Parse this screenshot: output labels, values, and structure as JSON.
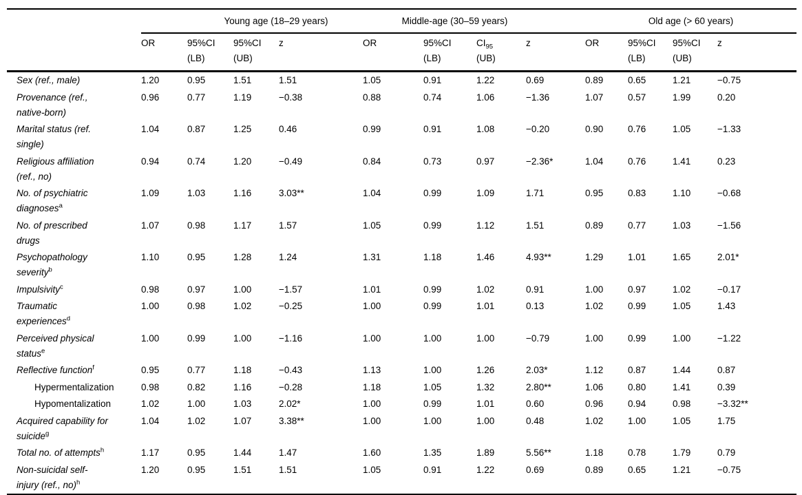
{
  "page": {
    "background": "#ffffff",
    "text_color": "#000000",
    "rule_color": "#000000"
  },
  "table": {
    "groups": [
      {
        "label": "Young age (18–29 years)"
      },
      {
        "label": "Middle-age (30–59 years)"
      },
      {
        "label": "Old age (> 60 years)"
      }
    ],
    "header_cells": [
      {
        "line1": "OR",
        "line2": ""
      },
      {
        "line1": "95%CI",
        "line2": "(LB)"
      },
      {
        "line1": "95%CI",
        "line2": "(UB)"
      },
      {
        "line1": "z",
        "line2": ""
      },
      {
        "line1": "OR",
        "line2": ""
      },
      {
        "line1": "95%CI",
        "line2": "(LB)"
      },
      {
        "line1": "CI",
        "sub": "95",
        "line2": "(UB)"
      },
      {
        "line1": "z",
        "line2": ""
      },
      {
        "line1": "OR",
        "line2": ""
      },
      {
        "line1": "95%CI",
        "line2": "(LB)"
      },
      {
        "line1": "95%CI",
        "line2": "(UB)"
      },
      {
        "line1": "z",
        "line2": ""
      }
    ],
    "rows": [
      {
        "lines": [
          "Sex (ref., male)"
        ],
        "sup": "",
        "values": [
          "1.20",
          "0.95",
          "1.51",
          "1.51",
          "1.05",
          "0.91",
          "1.22",
          "0.69",
          "0.89",
          "0.65",
          "1.21",
          "−0.75"
        ]
      },
      {
        "lines": [
          "Provenance (ref.,",
          "native-born)"
        ],
        "sup": "",
        "values": [
          "0.96",
          "0.77",
          "1.19",
          "−0.38",
          "0.88",
          "0.74",
          "1.06",
          "−1.36",
          "1.07",
          "0.57",
          "1.99",
          "0.20"
        ]
      },
      {
        "lines": [
          "Marital status (ref.",
          "single)"
        ],
        "sup": "",
        "values": [
          "1.04",
          "0.87",
          "1.25",
          "0.46",
          "0.99",
          "0.91",
          "1.08",
          "−0.20",
          "0.90",
          "0.76",
          "1.05",
          "−1.33"
        ]
      },
      {
        "lines": [
          "Religious affiliation",
          "(ref., no)"
        ],
        "sup": "",
        "values": [
          "0.94",
          "0.74",
          "1.20",
          "−0.49",
          "0.84",
          "0.73",
          "0.97",
          "−2.36*",
          "1.04",
          "0.76",
          "1.41",
          "0.23"
        ]
      },
      {
        "lines": [
          "No. of psychiatric",
          "diagnoses"
        ],
        "sup": "a",
        "values": [
          "1.09",
          "1.03",
          "1.16",
          "3.03**",
          "1.04",
          "0.99",
          "1.09",
          "1.71",
          "0.95",
          "0.83",
          "1.10",
          "−0.68"
        ]
      },
      {
        "lines": [
          "No. of prescribed",
          "drugs"
        ],
        "sup": "",
        "values": [
          "1.07",
          "0.98",
          "1.17",
          "1.57",
          "1.05",
          "0.99",
          "1.12",
          "1.51",
          "0.89",
          "0.77",
          "1.03",
          "−1.56"
        ]
      },
      {
        "lines": [
          "Psychopathology",
          "severity"
        ],
        "sup": "b",
        "values": [
          "1.10",
          "0.95",
          "1.28",
          "1.24",
          "1.31",
          "1.18",
          "1.46",
          "4.93**",
          "1.29",
          "1.01",
          "1.65",
          "2.01*"
        ]
      },
      {
        "lines": [
          "Impulsivity"
        ],
        "sup": "c",
        "values": [
          "0.98",
          "0.97",
          "1.00",
          "−1.57",
          "1.01",
          "0.99",
          "1.02",
          "0.91",
          "1.00",
          "0.97",
          "1.02",
          "−0.17"
        ]
      },
      {
        "lines": [
          "Traumatic",
          "experiences"
        ],
        "sup": "d",
        "values": [
          "1.00",
          "0.98",
          "1.02",
          "−0.25",
          "1.00",
          "0.99",
          "1.01",
          "0.13",
          "1.02",
          "0.99",
          "1.05",
          "1.43"
        ]
      },
      {
        "lines": [
          "Perceived physical",
          "status"
        ],
        "sup": "e",
        "values": [
          "1.00",
          "0.99",
          "1.00",
          "−1.16",
          "1.00",
          "1.00",
          "1.00",
          "−0.79",
          "1.00",
          "0.99",
          "1.00",
          "−1.22"
        ]
      },
      {
        "lines": [
          "Reflective function"
        ],
        "sup": "f",
        "values": [
          "0.95",
          "0.77",
          "1.18",
          "−0.43",
          "1.13",
          "1.00",
          "1.26",
          "2.03*",
          "1.12",
          "0.87",
          "1.44",
          "0.87"
        ]
      },
      {
        "lines": [
          "Hypermentalization"
        ],
        "sup": "",
        "indent": true,
        "plain": true,
        "values": [
          "0.98",
          "0.82",
          "1.16",
          "−0.28",
          "1.18",
          "1.05",
          "1.32",
          "2.80**",
          "1.06",
          "0.80",
          "1.41",
          "0.39"
        ]
      },
      {
        "lines": [
          "Hypomentalization"
        ],
        "sup": "",
        "indent": true,
        "plain": true,
        "values": [
          "1.02",
          "1.00",
          "1.03",
          "2.02*",
          "1.00",
          "0.99",
          "1.01",
          "0.60",
          "0.96",
          "0.94",
          "0.98",
          "−3.32**"
        ]
      },
      {
        "lines": [
          "Acquired capability for",
          "suicide"
        ],
        "sup": "g",
        "values": [
          "1.04",
          "1.02",
          "1.07",
          "3.38**",
          "1.00",
          "1.00",
          "1.00",
          "0.48",
          "1.02",
          "1.00",
          "1.05",
          "1.75"
        ]
      },
      {
        "lines": [
          "Total no. of attempts"
        ],
        "sup": "h",
        "values": [
          "1.17",
          "0.95",
          "1.44",
          "1.47",
          "1.60",
          "1.35",
          "1.89",
          "5.56**",
          "1.18",
          "0.78",
          "1.79",
          "0.79"
        ]
      },
      {
        "lines": [
          "Non-suicidal self-",
          "injury (ref., no)"
        ],
        "sup": "h",
        "values": [
          "1.20",
          "0.95",
          "1.51",
          "1.51",
          "1.05",
          "0.91",
          "1.22",
          "0.69",
          "0.89",
          "0.65",
          "1.21",
          "−0.75"
        ]
      }
    ]
  }
}
